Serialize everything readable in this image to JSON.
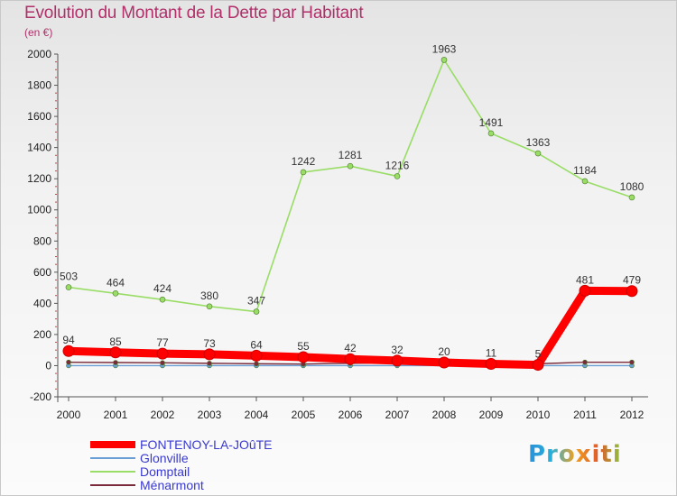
{
  "title": "Evolution du Montant de la Dette par Habitant",
  "subtitle": "(en €)",
  "logo_text": "Proxiti",
  "chart_data": {
    "type": "line",
    "title": "Evolution du Montant de la Dette par Habitant",
    "ylabel": "(en €)",
    "xlabel": "",
    "categories": [
      "2000",
      "2001",
      "2002",
      "2003",
      "2004",
      "2005",
      "2006",
      "2007",
      "2008",
      "2009",
      "2010",
      "2011",
      "2012"
    ],
    "ylim": [
      -200,
      2000
    ],
    "yticks": [
      -200,
      0,
      200,
      400,
      600,
      800,
      1000,
      1200,
      1400,
      1600,
      1800,
      2000
    ],
    "grid": false,
    "legend_position": "bottom-left",
    "series": [
      {
        "name": "FONTENOY-LA-JOûTE",
        "color": "#ff0000",
        "values": [
          94,
          85,
          77,
          73,
          64,
          55,
          42,
          32,
          20,
          11,
          5,
          481,
          479
        ],
        "labels": [
          "94",
          "85",
          "77",
          "73",
          "64",
          "55",
          "42",
          "32",
          "20",
          "11",
          "5",
          "481",
          "479"
        ]
      },
      {
        "name": "Glonville",
        "color": "#6a9fd6",
        "values": [
          0,
          0,
          0,
          0,
          0,
          0,
          0,
          0,
          0,
          0,
          0,
          0,
          0
        ],
        "labels": []
      },
      {
        "name": "Domptail",
        "color": "#99dd66",
        "values": [
          503,
          464,
          424,
          380,
          347,
          1242,
          1281,
          1216,
          1963,
          1491,
          1363,
          1184,
          1080
        ],
        "labels": [
          "503",
          "464",
          "424",
          "380",
          "347",
          "1242",
          "1281",
          "1216",
          "1963",
          "1491",
          "1363",
          "1184",
          "1080"
        ]
      },
      {
        "name": "Ménarmont",
        "color": "#7a2a3a",
        "values": [
          22,
          20,
          18,
          15,
          12,
          10,
          15,
          18,
          10,
          12,
          12,
          22,
          22
        ],
        "labels": []
      }
    ]
  }
}
